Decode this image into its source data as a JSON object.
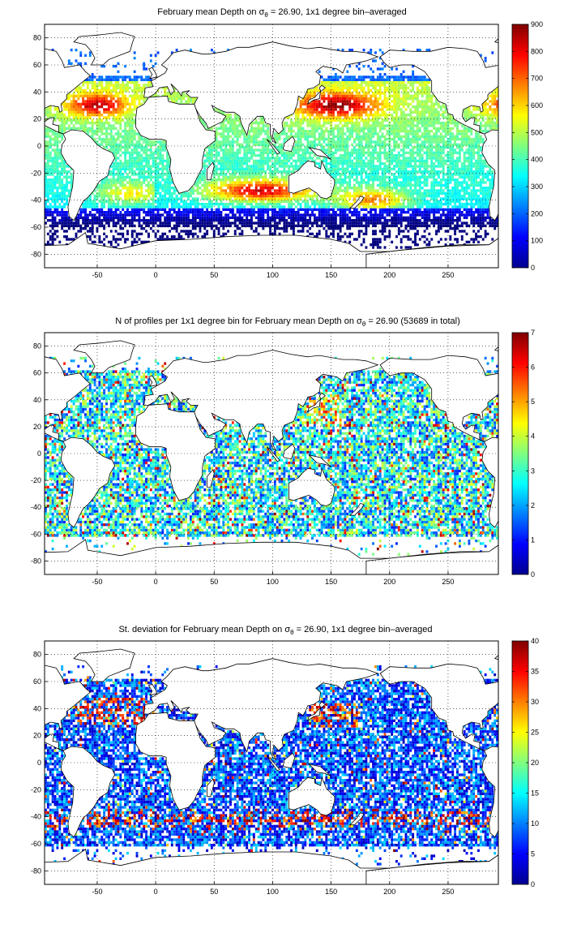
{
  "figure": {
    "panels": [
      {
        "id": "depth",
        "title_prefix": "February mean Depth on ",
        "title_sigma": "σ",
        "title_sub": "θ",
        "title_suffix": " = 26.90, 1x1 degree bin–averaged",
        "colorbar_min": 0,
        "colorbar_max": 900,
        "colorbar_ticks": [
          "0",
          "100",
          "200",
          "300",
          "400",
          "500",
          "600",
          "700",
          "800",
          "900"
        ],
        "pattern": "depth"
      },
      {
        "id": "count",
        "title_prefix": "N of profiles per 1x1 degree bin for February mean Depth on ",
        "title_sigma": "σ",
        "title_sub": "θ",
        "title_suffix": " = 26.90 (53689 in total)",
        "colorbar_min": 0,
        "colorbar_max": 7,
        "colorbar_ticks": [
          "0",
          "1",
          "2",
          "3",
          "4",
          "5",
          "6",
          "7"
        ],
        "pattern": "count"
      },
      {
        "id": "stdev",
        "title_prefix": "St. deviation for February mean Depth on ",
        "title_sigma": "σ",
        "title_sub": "θ",
        "title_suffix": " = 26.90, 1x1 degree bin–averaged",
        "colorbar_min": 0,
        "colorbar_max": 40,
        "colorbar_ticks": [
          "0",
          "5",
          "10",
          "15",
          "20",
          "25",
          "30",
          "35",
          "40"
        ],
        "pattern": "stdev"
      }
    ],
    "x_ticks": [
      "-50",
      "0",
      "50",
      "100",
      "150",
      "200",
      "250"
    ],
    "y_ticks": [
      "80",
      "60",
      "40",
      "20",
      "0",
      "-20",
      "-40",
      "-60",
      "-80"
    ],
    "x_range": [
      -95,
      293
    ],
    "y_range": [
      -90,
      90
    ],
    "colormap": "jet",
    "grid": "dotted"
  }
}
